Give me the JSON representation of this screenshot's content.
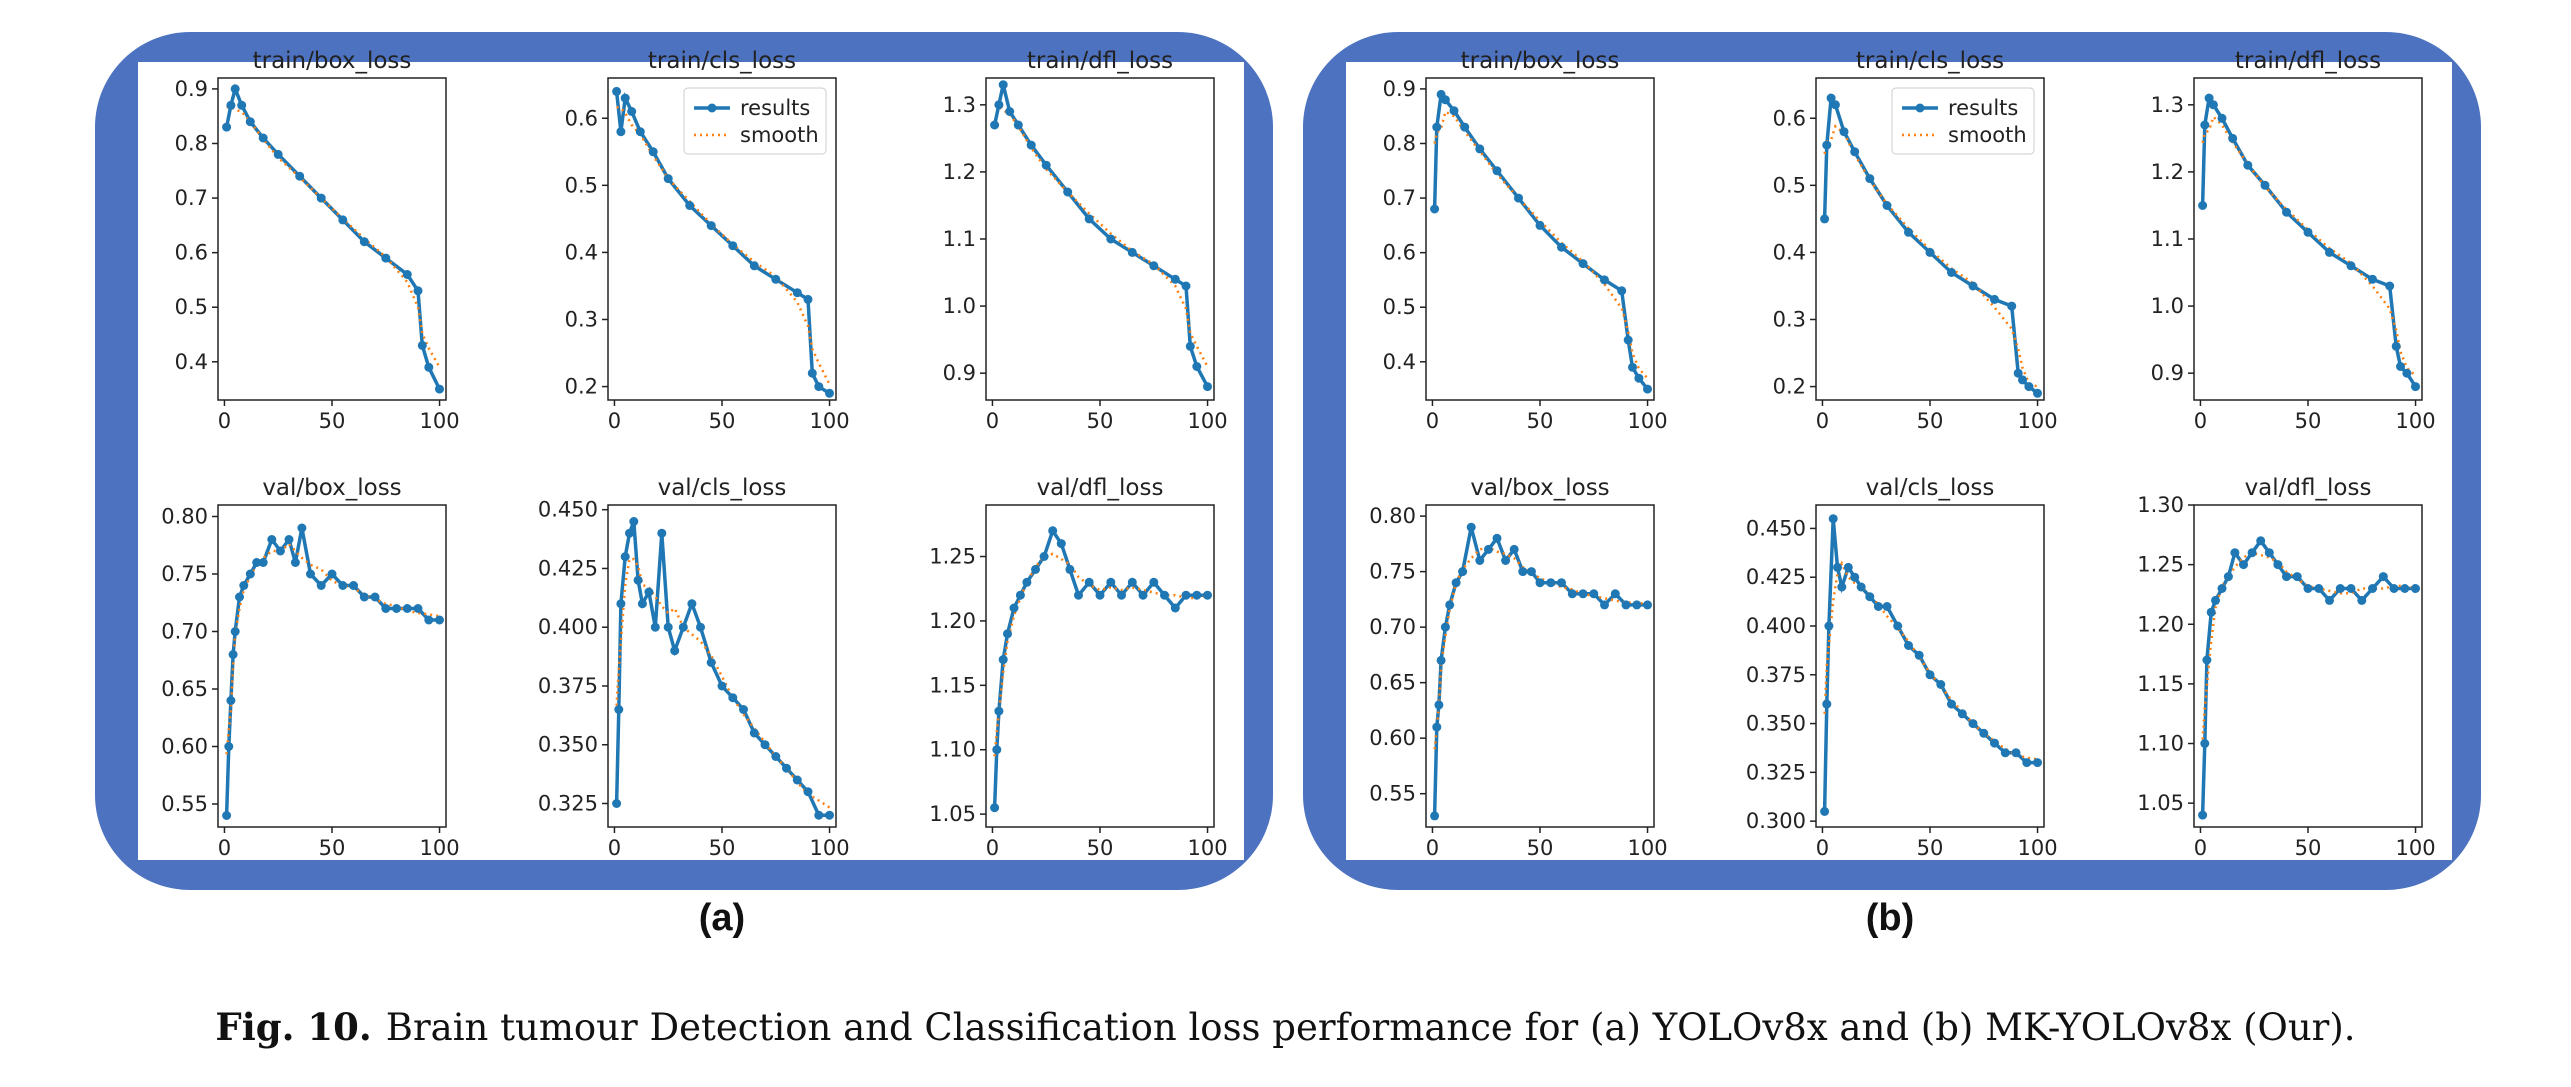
{
  "figure": {
    "caption_label": "Fig. 10.",
    "caption_text": "Brain tumour Detection and Classification loss performance for (a) YOLOv8x and (b) MK-YOLOv8x (Our).",
    "panel_labels": [
      "(a)",
      "(b)"
    ],
    "colors": {
      "panel_bg": "#4d73c0",
      "results": "#1f77b4",
      "smooth": "#ff7f0e"
    }
  },
  "chart_data": [
    {
      "panel": "(a)",
      "charts": [
        {
          "type": "line",
          "title": "train/box_loss",
          "xlim": [
            0,
            100
          ],
          "xticks": [
            0,
            50,
            100
          ],
          "ylim": [
            0.33,
            0.92
          ],
          "yticks": [
            0.4,
            0.5,
            0.6,
            0.7,
            0.8,
            0.9
          ],
          "legend": null,
          "series": [
            {
              "name": "results",
              "x": [
                1,
                3,
                5,
                8,
                12,
                18,
                25,
                35,
                45,
                55,
                65,
                75,
                85,
                90,
                92,
                95,
                100
              ],
              "y": [
                0.83,
                0.87,
                0.9,
                0.87,
                0.84,
                0.81,
                0.78,
                0.74,
                0.7,
                0.66,
                0.62,
                0.59,
                0.56,
                0.53,
                0.43,
                0.39,
                0.35
              ]
            }
          ]
        },
        {
          "type": "line",
          "title": "train/cls_loss",
          "xlim": [
            0,
            100
          ],
          "xticks": [
            0,
            50,
            100
          ],
          "ylim": [
            0.18,
            0.66
          ],
          "yticks": [
            0.2,
            0.3,
            0.4,
            0.5,
            0.6
          ],
          "legend": {
            "entries": [
              "results",
              "smooth"
            ],
            "placement": "top-right"
          },
          "series": [
            {
              "name": "results",
              "x": [
                1,
                3,
                5,
                8,
                12,
                18,
                25,
                35,
                45,
                55,
                65,
                75,
                85,
                90,
                92,
                95,
                100
              ],
              "y": [
                0.64,
                0.58,
                0.63,
                0.61,
                0.58,
                0.55,
                0.51,
                0.47,
                0.44,
                0.41,
                0.38,
                0.36,
                0.34,
                0.33,
                0.22,
                0.2,
                0.19
              ]
            }
          ]
        },
        {
          "type": "line",
          "title": "train/dfl_loss",
          "xlim": [
            0,
            100
          ],
          "xticks": [
            0,
            50,
            100
          ],
          "ylim": [
            0.86,
            1.34
          ],
          "yticks": [
            0.9,
            1.0,
            1.1,
            1.2,
            1.3
          ],
          "legend": null,
          "series": [
            {
              "name": "results",
              "x": [
                1,
                3,
                5,
                8,
                12,
                18,
                25,
                35,
                45,
                55,
                65,
                75,
                85,
                90,
                92,
                95,
                100
              ],
              "y": [
                1.27,
                1.3,
                1.33,
                1.29,
                1.27,
                1.24,
                1.21,
                1.17,
                1.13,
                1.1,
                1.08,
                1.06,
                1.04,
                1.03,
                0.94,
                0.91,
                0.88
              ]
            }
          ]
        },
        {
          "type": "line",
          "title": "val/box_loss",
          "xlim": [
            0,
            100
          ],
          "xticks": [
            0,
            50,
            100
          ],
          "ylim": [
            0.53,
            0.81
          ],
          "yticks": [
            0.55,
            0.6,
            0.65,
            0.7,
            0.75,
            0.8
          ],
          "legend": null,
          "series": [
            {
              "name": "results",
              "x": [
                1,
                2,
                3,
                4,
                5,
                7,
                9,
                12,
                15,
                18,
                22,
                26,
                30,
                33,
                36,
                40,
                45,
                50,
                55,
                60,
                65,
                70,
                75,
                80,
                85,
                90,
                95,
                100
              ],
              "y": [
                0.54,
                0.6,
                0.64,
                0.68,
                0.7,
                0.73,
                0.74,
                0.75,
                0.76,
                0.76,
                0.78,
                0.77,
                0.78,
                0.76,
                0.79,
                0.75,
                0.74,
                0.75,
                0.74,
                0.74,
                0.73,
                0.73,
                0.72,
                0.72,
                0.72,
                0.72,
                0.71,
                0.71
              ]
            }
          ]
        },
        {
          "type": "line",
          "title": "val/cls_loss",
          "xlim": [
            0,
            100
          ],
          "xticks": [
            0,
            50,
            100
          ],
          "ylim": [
            0.315,
            0.452
          ],
          "yticks": [
            0.325,
            0.35,
            0.375,
            0.4,
            0.425,
            0.45
          ],
          "legend": null,
          "series": [
            {
              "name": "results",
              "x": [
                1,
                2,
                3,
                5,
                7,
                9,
                11,
                13,
                16,
                19,
                22,
                25,
                28,
                32,
                36,
                40,
                45,
                50,
                55,
                60,
                65,
                70,
                75,
                80,
                85,
                90,
                95,
                100
              ],
              "y": [
                0.325,
                0.365,
                0.41,
                0.43,
                0.44,
                0.445,
                0.42,
                0.41,
                0.415,
                0.4,
                0.44,
                0.4,
                0.39,
                0.4,
                0.41,
                0.4,
                0.385,
                0.375,
                0.37,
                0.365,
                0.355,
                0.35,
                0.345,
                0.34,
                0.335,
                0.33,
                0.32,
                0.32
              ]
            }
          ]
        },
        {
          "type": "line",
          "title": "val/dfl_loss",
          "xlim": [
            0,
            100
          ],
          "xticks": [
            0,
            50,
            100
          ],
          "ylim": [
            1.04,
            1.29
          ],
          "yticks": [
            1.05,
            1.1,
            1.15,
            1.2,
            1.25
          ],
          "legend": null,
          "series": [
            {
              "name": "results",
              "x": [
                1,
                2,
                3,
                5,
                7,
                10,
                13,
                16,
                20,
                24,
                28,
                32,
                36,
                40,
                45,
                50,
                55,
                60,
                65,
                70,
                75,
                80,
                85,
                90,
                95,
                100
              ],
              "y": [
                1.055,
                1.1,
                1.13,
                1.17,
                1.19,
                1.21,
                1.22,
                1.23,
                1.24,
                1.25,
                1.27,
                1.26,
                1.24,
                1.22,
                1.23,
                1.22,
                1.23,
                1.22,
                1.23,
                1.22,
                1.23,
                1.22,
                1.21,
                1.22,
                1.22,
                1.22
              ]
            }
          ]
        }
      ]
    },
    {
      "panel": "(b)",
      "charts": [
        {
          "type": "line",
          "title": "train/box_loss",
          "xlim": [
            0,
            100
          ],
          "xticks": [
            0,
            50,
            100
          ],
          "ylim": [
            0.33,
            0.92
          ],
          "yticks": [
            0.4,
            0.5,
            0.6,
            0.7,
            0.8,
            0.9
          ],
          "legend": null,
          "series": [
            {
              "name": "results",
              "x": [
                1,
                2,
                4,
                6,
                10,
                15,
                22,
                30,
                40,
                50,
                60,
                70,
                80,
                88,
                91,
                93,
                96,
                100
              ],
              "y": [
                0.68,
                0.83,
                0.89,
                0.88,
                0.86,
                0.83,
                0.79,
                0.75,
                0.7,
                0.65,
                0.61,
                0.58,
                0.55,
                0.53,
                0.44,
                0.39,
                0.37,
                0.35
              ]
            }
          ]
        },
        {
          "type": "line",
          "title": "train/cls_loss",
          "xlim": [
            0,
            100
          ],
          "xticks": [
            0,
            50,
            100
          ],
          "ylim": [
            0.18,
            0.66
          ],
          "yticks": [
            0.2,
            0.3,
            0.4,
            0.5,
            0.6
          ],
          "legend": {
            "entries": [
              "results",
              "smooth"
            ],
            "placement": "top-right"
          },
          "series": [
            {
              "name": "results",
              "x": [
                1,
                2,
                4,
                6,
                10,
                15,
                22,
                30,
                40,
                50,
                60,
                70,
                80,
                88,
                91,
                93,
                96,
                100
              ],
              "y": [
                0.45,
                0.56,
                0.63,
                0.62,
                0.58,
                0.55,
                0.51,
                0.47,
                0.43,
                0.4,
                0.37,
                0.35,
                0.33,
                0.32,
                0.22,
                0.21,
                0.2,
                0.19
              ]
            }
          ]
        },
        {
          "type": "line",
          "title": "train/dfl_loss",
          "xlim": [
            0,
            100
          ],
          "xticks": [
            0,
            50,
            100
          ],
          "ylim": [
            0.86,
            1.34
          ],
          "yticks": [
            0.9,
            1.0,
            1.1,
            1.2,
            1.3
          ],
          "legend": null,
          "series": [
            {
              "name": "results",
              "x": [
                1,
                2,
                4,
                6,
                10,
                15,
                22,
                30,
                40,
                50,
                60,
                70,
                80,
                88,
                91,
                93,
                96,
                100
              ],
              "y": [
                1.15,
                1.27,
                1.31,
                1.3,
                1.28,
                1.25,
                1.21,
                1.18,
                1.14,
                1.11,
                1.08,
                1.06,
                1.04,
                1.03,
                0.94,
                0.91,
                0.9,
                0.88
              ]
            }
          ]
        },
        {
          "type": "line",
          "title": "val/box_loss",
          "xlim": [
            0,
            100
          ],
          "xticks": [
            0,
            50,
            100
          ],
          "ylim": [
            0.52,
            0.81
          ],
          "yticks": [
            0.55,
            0.6,
            0.65,
            0.7,
            0.75,
            0.8
          ],
          "legend": null,
          "series": [
            {
              "name": "results",
              "x": [
                1,
                2,
                3,
                4,
                6,
                8,
                11,
                14,
                18,
                22,
                26,
                30,
                34,
                38,
                42,
                46,
                50,
                55,
                60,
                65,
                70,
                75,
                80,
                85,
                90,
                95,
                100
              ],
              "y": [
                0.53,
                0.61,
                0.63,
                0.67,
                0.7,
                0.72,
                0.74,
                0.75,
                0.79,
                0.76,
                0.77,
                0.78,
                0.76,
                0.77,
                0.75,
                0.75,
                0.74,
                0.74,
                0.74,
                0.73,
                0.73,
                0.73,
                0.72,
                0.73,
                0.72,
                0.72,
                0.72
              ]
            }
          ]
        },
        {
          "type": "line",
          "title": "val/cls_loss",
          "xlim": [
            0,
            100
          ],
          "xticks": [
            0,
            50,
            100
          ],
          "ylim": [
            0.297,
            0.462
          ],
          "yticks": [
            0.3,
            0.325,
            0.35,
            0.375,
            0.4,
            0.425,
            0.45
          ],
          "legend": null,
          "series": [
            {
              "name": "results",
              "x": [
                1,
                2,
                3,
                5,
                7,
                9,
                12,
                15,
                18,
                22,
                26,
                30,
                35,
                40,
                45,
                50,
                55,
                60,
                65,
                70,
                75,
                80,
                85,
                90,
                95,
                100
              ],
              "y": [
                0.305,
                0.36,
                0.4,
                0.455,
                0.43,
                0.42,
                0.43,
                0.425,
                0.42,
                0.415,
                0.41,
                0.41,
                0.4,
                0.39,
                0.385,
                0.375,
                0.37,
                0.36,
                0.355,
                0.35,
                0.345,
                0.34,
                0.335,
                0.335,
                0.33,
                0.33
              ]
            }
          ]
        },
        {
          "type": "line",
          "title": "val/dfl_loss",
          "xlim": [
            0,
            100
          ],
          "xticks": [
            0,
            50,
            100
          ],
          "ylim": [
            1.03,
            1.3
          ],
          "yticks": [
            1.05,
            1.1,
            1.15,
            1.2,
            1.25,
            1.3
          ],
          "legend": null,
          "series": [
            {
              "name": "results",
              "x": [
                1,
                2,
                3,
                5,
                7,
                10,
                13,
                16,
                20,
                24,
                28,
                32,
                36,
                40,
                45,
                50,
                55,
                60,
                65,
                70,
                75,
                80,
                85,
                90,
                95,
                100
              ],
              "y": [
                1.04,
                1.1,
                1.17,
                1.21,
                1.22,
                1.23,
                1.24,
                1.26,
                1.25,
                1.26,
                1.27,
                1.26,
                1.25,
                1.24,
                1.24,
                1.23,
                1.23,
                1.22,
                1.23,
                1.23,
                1.22,
                1.23,
                1.24,
                1.23,
                1.23,
                1.23
              ]
            }
          ]
        }
      ]
    }
  ]
}
